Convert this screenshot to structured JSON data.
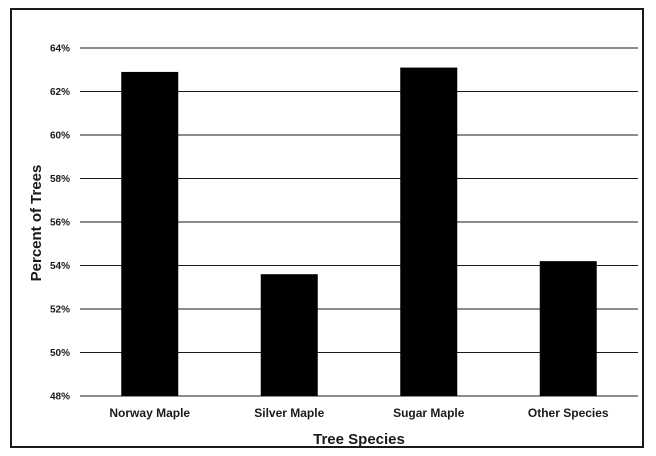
{
  "chart_data": {
    "type": "bar",
    "title": "",
    "xlabel": "Tree Species",
    "ylabel": "Percent of Trees",
    "categories": [
      "Norway Maple",
      "Silver Maple",
      "Sugar Maple",
      "Other Species"
    ],
    "values": [
      62.9,
      53.6,
      63.1,
      54.2
    ],
    "unit": "%",
    "ylim": [
      48,
      64
    ],
    "yticks": [
      48,
      50,
      52,
      54,
      56,
      58,
      60,
      62,
      64
    ],
    "ytick_labels": [
      "48%",
      "50%",
      "52%",
      "54%",
      "56%",
      "58%",
      "60%",
      "62%",
      "64%"
    ],
    "grid": true,
    "legend": "none",
    "colors": {
      "bar": "#000000",
      "grid": "#1a1a1a",
      "text": "#1a1a1a"
    }
  }
}
